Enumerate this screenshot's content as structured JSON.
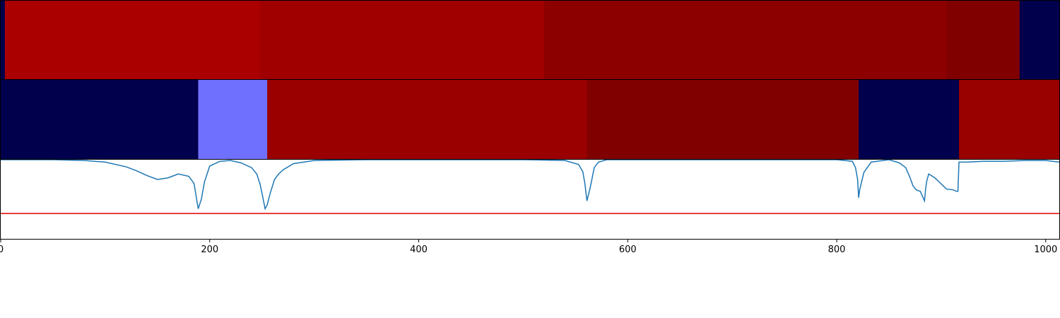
{
  "chart_data": {
    "type": "heatmap",
    "title": "",
    "xlabel": "",
    "ylabel": "",
    "xlim": [
      0,
      1013
    ],
    "xticks": [
      "0",
      "200",
      "400",
      "600",
      "800",
      "1000"
    ],
    "xtick_values": [
      0,
      200,
      400,
      600,
      800,
      1000
    ],
    "grid": false,
    "legend": "none",
    "heatmap_rows": [
      {
        "segments": [
          {
            "start": 0,
            "end": 4,
            "color": "#00004c"
          },
          {
            "start": 4,
            "end": 248,
            "color": "#ab0000"
          },
          {
            "start": 248,
            "end": 520,
            "color": "#a00000"
          },
          {
            "start": 520,
            "end": 905,
            "color": "#8c0000"
          },
          {
            "start": 905,
            "end": 975,
            "color": "#800000"
          },
          {
            "start": 975,
            "end": 1013,
            "color": "#00004c"
          }
        ]
      },
      {
        "segments": [
          {
            "start": 0,
            "end": 189,
            "color": "#00004c"
          },
          {
            "start": 189,
            "end": 255,
            "color": "#7070ff"
          },
          {
            "start": 255,
            "end": 561,
            "color": "#9a0000"
          },
          {
            "start": 561,
            "end": 821,
            "color": "#800000"
          },
          {
            "start": 821,
            "end": 917,
            "color": "#00004c"
          },
          {
            "start": 917,
            "end": 1013,
            "color": "#990000"
          }
        ]
      }
    ],
    "line_panel": {
      "ylim": [
        0,
        1
      ],
      "threshold": 0.32,
      "threshold_color": "#e00000",
      "line_color": "#1f77b4",
      "x": [
        0,
        50,
        80,
        100,
        120,
        130,
        140,
        150,
        160,
        170,
        180,
        185,
        189,
        192,
        195,
        200,
        210,
        220,
        230,
        240,
        245,
        248,
        250,
        253,
        255,
        258,
        262,
        266,
        270,
        280,
        300,
        350,
        400,
        500,
        540,
        553,
        557,
        559,
        561,
        564,
        568,
        572,
        580,
        600,
        700,
        800,
        815,
        818,
        820,
        821,
        822,
        826,
        833,
        850,
        860,
        866,
        870,
        873,
        876,
        880,
        884,
        885,
        886,
        888,
        894,
        905,
        911,
        915,
        916,
        917,
        920,
        925,
        940,
        960,
        980,
        1000,
        1013
      ],
      "y": [
        1.0,
        1.0,
        0.99,
        0.97,
        0.91,
        0.86,
        0.8,
        0.75,
        0.77,
        0.82,
        0.79,
        0.7,
        0.38,
        0.5,
        0.72,
        0.92,
        0.98,
        0.99,
        0.96,
        0.9,
        0.82,
        0.7,
        0.58,
        0.38,
        0.43,
        0.58,
        0.75,
        0.82,
        0.87,
        0.95,
        0.99,
        1.0,
        1.0,
        1.0,
        0.99,
        0.94,
        0.85,
        0.7,
        0.48,
        0.64,
        0.9,
        0.97,
        1.0,
        1.0,
        1.0,
        1.0,
        0.98,
        0.9,
        0.75,
        0.52,
        0.62,
        0.84,
        0.97,
        1.0,
        0.96,
        0.9,
        0.78,
        0.67,
        0.62,
        0.6,
        0.48,
        0.62,
        0.72,
        0.82,
        0.77,
        0.63,
        0.62,
        0.6,
        0.6,
        0.97,
        0.97,
        0.97,
        0.98,
        0.98,
        0.99,
        0.99,
        0.97
      ]
    }
  }
}
